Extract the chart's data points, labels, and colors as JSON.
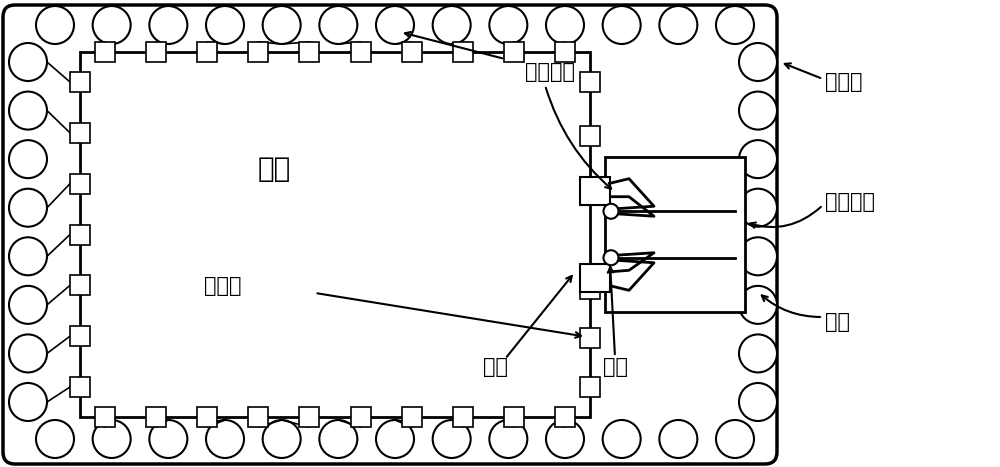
{
  "bg_color": "#ffffff",
  "line_color": "#000000",
  "fig_width": 10.0,
  "fig_height": 4.67,
  "labels": {
    "zhongbu_xianceng": "重布线层",
    "fengzhuang_ceng": "封装层",
    "fengzhuang_tianxian": "封装天线",
    "hanjiu": "焊球",
    "lianjieduan": "连接端",
    "xinpian": "芯片",
    "feixian": "馈线",
    "guokong": "过孔"
  }
}
